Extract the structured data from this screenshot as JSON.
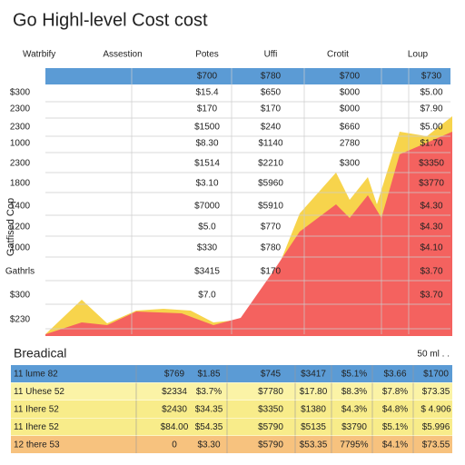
{
  "header": {
    "title": "Go Highl-level Cost cost"
  },
  "top_table": {
    "columns": [
      "Watrbify",
      "Assestion",
      "Potes",
      "Uffi",
      "Crotit",
      "Loup"
    ],
    "summary": [
      "$700",
      "$780",
      "$700",
      "$730"
    ],
    "y_title": "Gatfised Cop",
    "rows": [
      [
        "$300",
        "$15.4",
        "$650",
        "$000",
        "$5.00"
      ],
      [
        "2300",
        "$170",
        "$170",
        "$000",
        "$7.90"
      ],
      [
        "2300",
        "$1500",
        "$240",
        "$660",
        "$5.00"
      ],
      [
        "1000",
        "$8.30",
        "$1140",
        "2780",
        "$1.70"
      ],
      [
        "2300",
        "$1514",
        "$2210",
        "$300",
        "$3350"
      ],
      [
        "1800",
        "$3.10",
        "$5960",
        "",
        "$3770"
      ],
      [
        "1400",
        "$7000",
        "$5910",
        "",
        "$4.30"
      ],
      [
        "1200",
        "$5.0",
        "$770",
        "",
        "$4.30"
      ],
      [
        "1000",
        "$330",
        "$780",
        "",
        "$4.10"
      ],
      [
        "Gathrls",
        "$3415",
        "$170",
        "",
        "$3.70"
      ],
      [
        "$300",
        "$7.0",
        "",
        "",
        "$3.70"
      ],
      [
        "$230",
        "",
        "",
        "",
        ""
      ]
    ]
  },
  "bottom_table": {
    "title": "Breadical",
    "note": "50 ml . .",
    "rows": [
      [
        "11 lume 82",
        "$769",
        "$1.85",
        "$745",
        "$3417",
        "$5.1%",
        "$3.66",
        "$1700"
      ],
      [
        "11 Uhese 52",
        "$2334",
        "$3.7%",
        "$7780",
        "$17.80",
        "$8.3%",
        "$7.8%",
        "$73.35"
      ],
      [
        "11 Ihere 52",
        "$2430",
        "$34.35",
        "$3350",
        "$1380",
        "$4.3%",
        "$4.8%",
        "$ 4.906"
      ],
      [
        "11 Ihere 52",
        "$84.00",
        "$54.35",
        "$5790",
        "$5135",
        "$3790",
        "$5.1%",
        "$5.996"
      ],
      [
        "12 there 53",
        "0",
        "$3.30",
        "$5790",
        "$53.35",
        "7795%",
        "$4.1%",
        "$73.55"
      ]
    ]
  }
}
